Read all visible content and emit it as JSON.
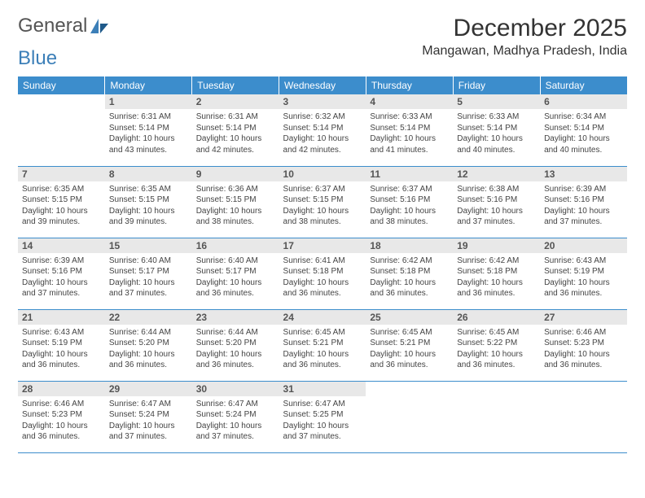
{
  "brand": {
    "text1": "General",
    "text2": "Blue"
  },
  "header": {
    "title": "December 2025",
    "location": "Mangawan, Madhya Pradesh, India"
  },
  "weekdays": [
    "Sunday",
    "Monday",
    "Tuesday",
    "Wednesday",
    "Thursday",
    "Friday",
    "Saturday"
  ],
  "colors": {
    "header_bg": "#3c8dcc",
    "header_fg": "#ffffff",
    "daynum_bg": "#e8e8e8",
    "rule": "#3c8dcc",
    "logo_gray": "#555555",
    "logo_blue": "#3c7fb8"
  },
  "grid": {
    "first_weekday_index": 1,
    "days_in_month": 31
  },
  "days": {
    "1": {
      "sunrise": "6:31 AM",
      "sunset": "5:14 PM",
      "daylight": "10 hours and 43 minutes."
    },
    "2": {
      "sunrise": "6:31 AM",
      "sunset": "5:14 PM",
      "daylight": "10 hours and 42 minutes."
    },
    "3": {
      "sunrise": "6:32 AM",
      "sunset": "5:14 PM",
      "daylight": "10 hours and 42 minutes."
    },
    "4": {
      "sunrise": "6:33 AM",
      "sunset": "5:14 PM",
      "daylight": "10 hours and 41 minutes."
    },
    "5": {
      "sunrise": "6:33 AM",
      "sunset": "5:14 PM",
      "daylight": "10 hours and 40 minutes."
    },
    "6": {
      "sunrise": "6:34 AM",
      "sunset": "5:14 PM",
      "daylight": "10 hours and 40 minutes."
    },
    "7": {
      "sunrise": "6:35 AM",
      "sunset": "5:15 PM",
      "daylight": "10 hours and 39 minutes."
    },
    "8": {
      "sunrise": "6:35 AM",
      "sunset": "5:15 PM",
      "daylight": "10 hours and 39 minutes."
    },
    "9": {
      "sunrise": "6:36 AM",
      "sunset": "5:15 PM",
      "daylight": "10 hours and 38 minutes."
    },
    "10": {
      "sunrise": "6:37 AM",
      "sunset": "5:15 PM",
      "daylight": "10 hours and 38 minutes."
    },
    "11": {
      "sunrise": "6:37 AM",
      "sunset": "5:16 PM",
      "daylight": "10 hours and 38 minutes."
    },
    "12": {
      "sunrise": "6:38 AM",
      "sunset": "5:16 PM",
      "daylight": "10 hours and 37 minutes."
    },
    "13": {
      "sunrise": "6:39 AM",
      "sunset": "5:16 PM",
      "daylight": "10 hours and 37 minutes."
    },
    "14": {
      "sunrise": "6:39 AM",
      "sunset": "5:16 PM",
      "daylight": "10 hours and 37 minutes."
    },
    "15": {
      "sunrise": "6:40 AM",
      "sunset": "5:17 PM",
      "daylight": "10 hours and 37 minutes."
    },
    "16": {
      "sunrise": "6:40 AM",
      "sunset": "5:17 PM",
      "daylight": "10 hours and 36 minutes."
    },
    "17": {
      "sunrise": "6:41 AM",
      "sunset": "5:18 PM",
      "daylight": "10 hours and 36 minutes."
    },
    "18": {
      "sunrise": "6:42 AM",
      "sunset": "5:18 PM",
      "daylight": "10 hours and 36 minutes."
    },
    "19": {
      "sunrise": "6:42 AM",
      "sunset": "5:18 PM",
      "daylight": "10 hours and 36 minutes."
    },
    "20": {
      "sunrise": "6:43 AM",
      "sunset": "5:19 PM",
      "daylight": "10 hours and 36 minutes."
    },
    "21": {
      "sunrise": "6:43 AM",
      "sunset": "5:19 PM",
      "daylight": "10 hours and 36 minutes."
    },
    "22": {
      "sunrise": "6:44 AM",
      "sunset": "5:20 PM",
      "daylight": "10 hours and 36 minutes."
    },
    "23": {
      "sunrise": "6:44 AM",
      "sunset": "5:20 PM",
      "daylight": "10 hours and 36 minutes."
    },
    "24": {
      "sunrise": "6:45 AM",
      "sunset": "5:21 PM",
      "daylight": "10 hours and 36 minutes."
    },
    "25": {
      "sunrise": "6:45 AM",
      "sunset": "5:21 PM",
      "daylight": "10 hours and 36 minutes."
    },
    "26": {
      "sunrise": "6:45 AM",
      "sunset": "5:22 PM",
      "daylight": "10 hours and 36 minutes."
    },
    "27": {
      "sunrise": "6:46 AM",
      "sunset": "5:23 PM",
      "daylight": "10 hours and 36 minutes."
    },
    "28": {
      "sunrise": "6:46 AM",
      "sunset": "5:23 PM",
      "daylight": "10 hours and 36 minutes."
    },
    "29": {
      "sunrise": "6:47 AM",
      "sunset": "5:24 PM",
      "daylight": "10 hours and 37 minutes."
    },
    "30": {
      "sunrise": "6:47 AM",
      "sunset": "5:24 PM",
      "daylight": "10 hours and 37 minutes."
    },
    "31": {
      "sunrise": "6:47 AM",
      "sunset": "5:25 PM",
      "daylight": "10 hours and 37 minutes."
    }
  },
  "labels": {
    "sunrise": "Sunrise:",
    "sunset": "Sunset:",
    "daylight": "Daylight:"
  }
}
